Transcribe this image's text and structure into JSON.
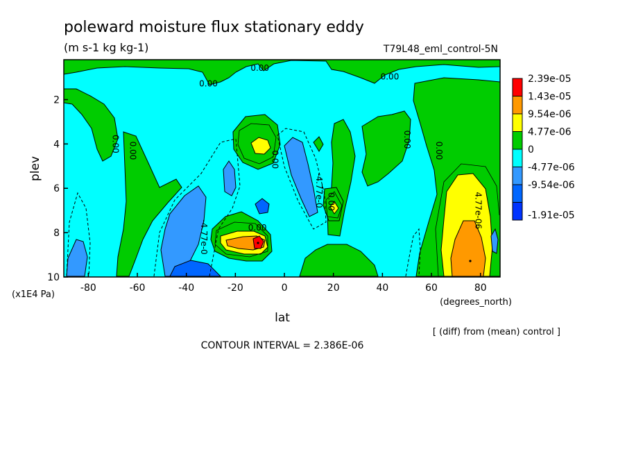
{
  "chart_data": {
    "type": "contour",
    "title": "poleward moisture flux stationary eddy",
    "units": "(m s-1 kg kg-1)",
    "run_label": "T79L48_eml_control-5N",
    "xlabel": "lat",
    "xunits": "(degrees_north)",
    "ylabel": "plev",
    "yunits": "(x1E4 Pa)",
    "xlim": [
      -90,
      88
    ],
    "ylim": [
      10,
      0.2
    ],
    "x_ticks": [
      -80,
      -60,
      -40,
      -20,
      0,
      20,
      40,
      60,
      80
    ],
    "x_tick_labels": [
      "-80",
      "-60",
      "-40",
      "-20",
      "0",
      "20",
      "40",
      "60",
      "80"
    ],
    "y_ticks": [
      2,
      4,
      6,
      8,
      10
    ],
    "y_tick_labels": [
      "2",
      "4",
      "6",
      "8",
      "10"
    ],
    "legend_placement": "right",
    "color_levels": [
      {
        "label": "2.39e-05",
        "color": "#ff0000"
      },
      {
        "label": "1.43e-05",
        "color": "#ff9900"
      },
      {
        "label": "9.54e-06",
        "color": "#ffff00"
      },
      {
        "label": "4.77e-06",
        "color": "#00cc00"
      },
      {
        "label": "0",
        "color": "#00ffff"
      },
      {
        "label": "-4.77e-06",
        "color": "#3399ff"
      },
      {
        "label": "-9.54e-06",
        "color": "#0066ff"
      },
      {
        "label": "-1.91e-05",
        "color": "#0033ff"
      }
    ],
    "contour_labels": [
      {
        "text": "0.00",
        "lat": -10,
        "plev": 0.7
      },
      {
        "text": "0.00",
        "lat": -31,
        "plev": 1.4
      },
      {
        "text": "0.00",
        "lat": 43,
        "plev": 1.1
      },
      {
        "text": "0.00",
        "lat": -70,
        "plev": 4.0
      },
      {
        "text": "0.00",
        "lat": -63,
        "plev": 4.3
      },
      {
        "text": "0.00",
        "lat": 49,
        "plev": 3.8
      },
      {
        "text": "0.00",
        "lat": 62,
        "plev": 4.3
      },
      {
        "text": "0.00",
        "lat": -5,
        "plev": 4.7
      },
      {
        "text": "0.00",
        "lat": 18,
        "plev": 6.6
      },
      {
        "text": "0.00",
        "lat": -11,
        "plev": 7.9
      },
      {
        "text": "-4.77e-0",
        "lat": 13,
        "plev": 6.1
      },
      {
        "text": "-4.77e-0",
        "lat": -34,
        "plev": 8.2
      },
      {
        "text": "4.77e-06",
        "lat": 78,
        "plev": 7.0
      }
    ],
    "footer": "CONTOUR INTERVAL = 2.386E-06",
    "note": "[ (diff) from (mean) control ]"
  }
}
